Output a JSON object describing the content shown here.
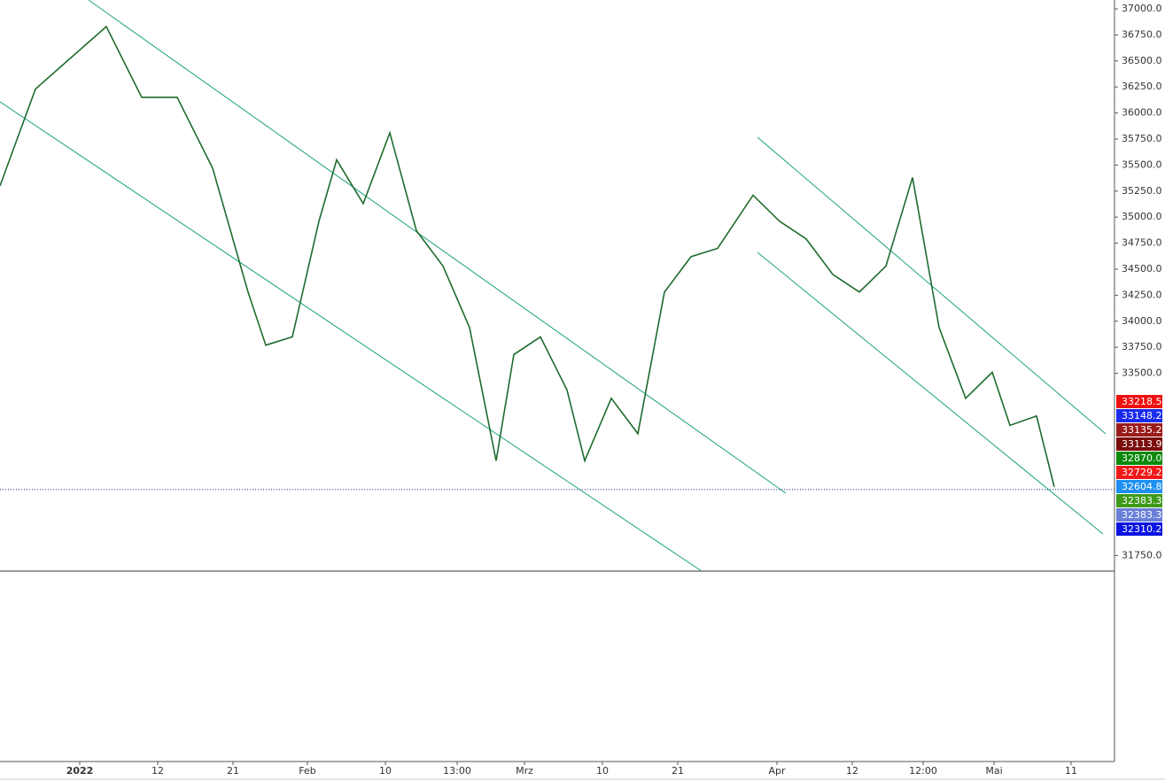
{
  "chart_data": {
    "type": "line",
    "ylim": [
      31600,
      37085
    ],
    "yticks": [
      {
        "value": 31750,
        "label": "31750.0"
      },
      {
        "value": 33500,
        "label": "33500.0"
      },
      {
        "value": 33750,
        "label": "33750.0"
      },
      {
        "value": 34000,
        "label": "34000.0"
      },
      {
        "value": 34250,
        "label": "34250.0"
      },
      {
        "value": 34500,
        "label": "34500.0"
      },
      {
        "value": 34750,
        "label": "34750.0"
      },
      {
        "value": 35000,
        "label": "35000.0"
      },
      {
        "value": 35250,
        "label": "35250.0"
      },
      {
        "value": 35500,
        "label": "35500.0"
      },
      {
        "value": 35750,
        "label": "35750.0"
      },
      {
        "value": 36000,
        "label": "36000.0"
      },
      {
        "value": 36250,
        "label": "36250.0"
      },
      {
        "value": 36500,
        "label": "36500.0"
      },
      {
        "value": 36750,
        "label": "36750.0"
      },
      {
        "value": 37000,
        "label": "37000.0"
      }
    ],
    "xlim": [
      0,
      1258
    ],
    "xticks": [
      {
        "value": 90,
        "label": "2022"
      },
      {
        "value": 178,
        "label": "12"
      },
      {
        "value": 263,
        "label": "21"
      },
      {
        "value": 347,
        "label": "Feb"
      },
      {
        "value": 435,
        "label": "10"
      },
      {
        "value": 516,
        "label": "13:00"
      },
      {
        "value": 592,
        "label": "Mrz"
      },
      {
        "value": 680,
        "label": "10"
      },
      {
        "value": 765,
        "label": "21"
      },
      {
        "value": 877,
        "label": "Apr"
      },
      {
        "value": 962,
        "label": "12"
      },
      {
        "value": 1042,
        "label": "12:00"
      },
      {
        "value": 1122,
        "label": "Mai"
      },
      {
        "value": 1209,
        "label": "11"
      }
    ],
    "series": [
      {
        "color": "#1e6b2e",
        "x": [
          0,
          40,
          80,
          120,
          160,
          200,
          240,
          280,
          300,
          330,
          360,
          380,
          410,
          440,
          470,
          500,
          530,
          560,
          580,
          610,
          640,
          660,
          690,
          720,
          750,
          780,
          810,
          850,
          880,
          910,
          940,
          970,
          1000,
          1030,
          1060,
          1090,
          1120,
          1140,
          1170,
          1190
        ],
        "values": [
          35300,
          36230,
          36530,
          36830,
          36150,
          36150,
          35470,
          34280,
          33770,
          33850,
          34960,
          35550,
          35130,
          35810,
          34870,
          34530,
          33940,
          32660,
          33680,
          33850,
          33340,
          32660,
          33260,
          32920,
          34280,
          34620,
          34700,
          35210,
          34960,
          34790,
          34450,
          34280,
          34530,
          35380,
          33940,
          33260,
          33510,
          33000,
          33090,
          32410
        ]
      }
    ],
    "price_labels": [
      {
        "value": 33218.5,
        "label": "33218.5",
        "color": "#f01010"
      },
      {
        "value": 33148.2,
        "label": "33148.2",
        "color": "#1a2bf0"
      },
      {
        "value": 33135.2,
        "label": "33135.2",
        "color": "#9b1b1b"
      },
      {
        "value": 33113.9,
        "label": "33113.9",
        "color": "#7a0c0c"
      },
      {
        "value": 32870.0,
        "label": "32870.0",
        "color": "#0b8a0b"
      },
      {
        "value": 32729.2,
        "label": "32729.2",
        "color": "#f01818"
      },
      {
        "value": 32604.8,
        "label": "32604.8",
        "color": "#1e90f0"
      },
      {
        "value": 32383.3,
        "label": "32383.3",
        "color": "#3f9a1a"
      },
      {
        "value": 32383.3,
        "label": "32383.3",
        "color": "#6a7fd8"
      },
      {
        "value": 32310.2,
        "label": "32310.2",
        "color": "#0a14e0"
      }
    ]
  }
}
